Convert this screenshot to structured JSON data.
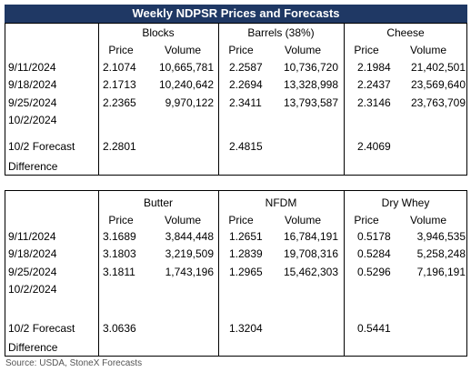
{
  "title": "Weekly NDPSR Prices and Forecasts",
  "tables": [
    {
      "groups": [
        "Blocks",
        "Barrels (38%)",
        "Cheese"
      ],
      "subheaders": [
        "Price",
        "Volume",
        "Price",
        "Volume",
        "Price",
        "Volume"
      ],
      "rows": [
        [
          "9/11/2024",
          "2.1074",
          "10,665,781",
          "2.2587",
          "10,736,720",
          "2.1984",
          "21,402,501"
        ],
        [
          "9/18/2024",
          "2.1713",
          "10,240,642",
          "2.2694",
          "13,328,998",
          "2.2437",
          "23,569,640"
        ],
        [
          "9/25/2024",
          "2.2365",
          "9,970,122",
          "2.3411",
          "13,793,587",
          "2.3146",
          "23,763,709"
        ],
        [
          "10/2/2024"
        ]
      ],
      "forecast": {
        "label": "10/2 Forecast",
        "values": [
          "2.2801",
          "2.4815",
          "2.4069"
        ]
      },
      "difference_label": "Difference"
    },
    {
      "groups": [
        "Butter",
        "NFDM",
        "Dry Whey"
      ],
      "subheaders": [
        "Price",
        "Volume",
        "Price",
        "Volume",
        "Price",
        "Volume"
      ],
      "rows": [
        [
          "9/11/2024",
          "3.1689",
          "3,844,448",
          "1.2651",
          "16,784,191",
          "0.5178",
          "3,946,535"
        ],
        [
          "9/18/2024",
          "3.1803",
          "3,219,509",
          "1.2839",
          "19,708,316",
          "0.5284",
          "5,258,248"
        ],
        [
          "9/25/2024",
          "3.1811",
          "1,743,196",
          "1.2965",
          "15,462,303",
          "0.5296",
          "7,196,191"
        ],
        [
          "10/2/2024"
        ]
      ],
      "forecast": {
        "label": "10/2 Forecast",
        "values": [
          "3.0636",
          "1.3204",
          "0.5441"
        ]
      },
      "difference_label": "Difference"
    }
  ],
  "source": "Source: USDA, StoneX Forecasts"
}
